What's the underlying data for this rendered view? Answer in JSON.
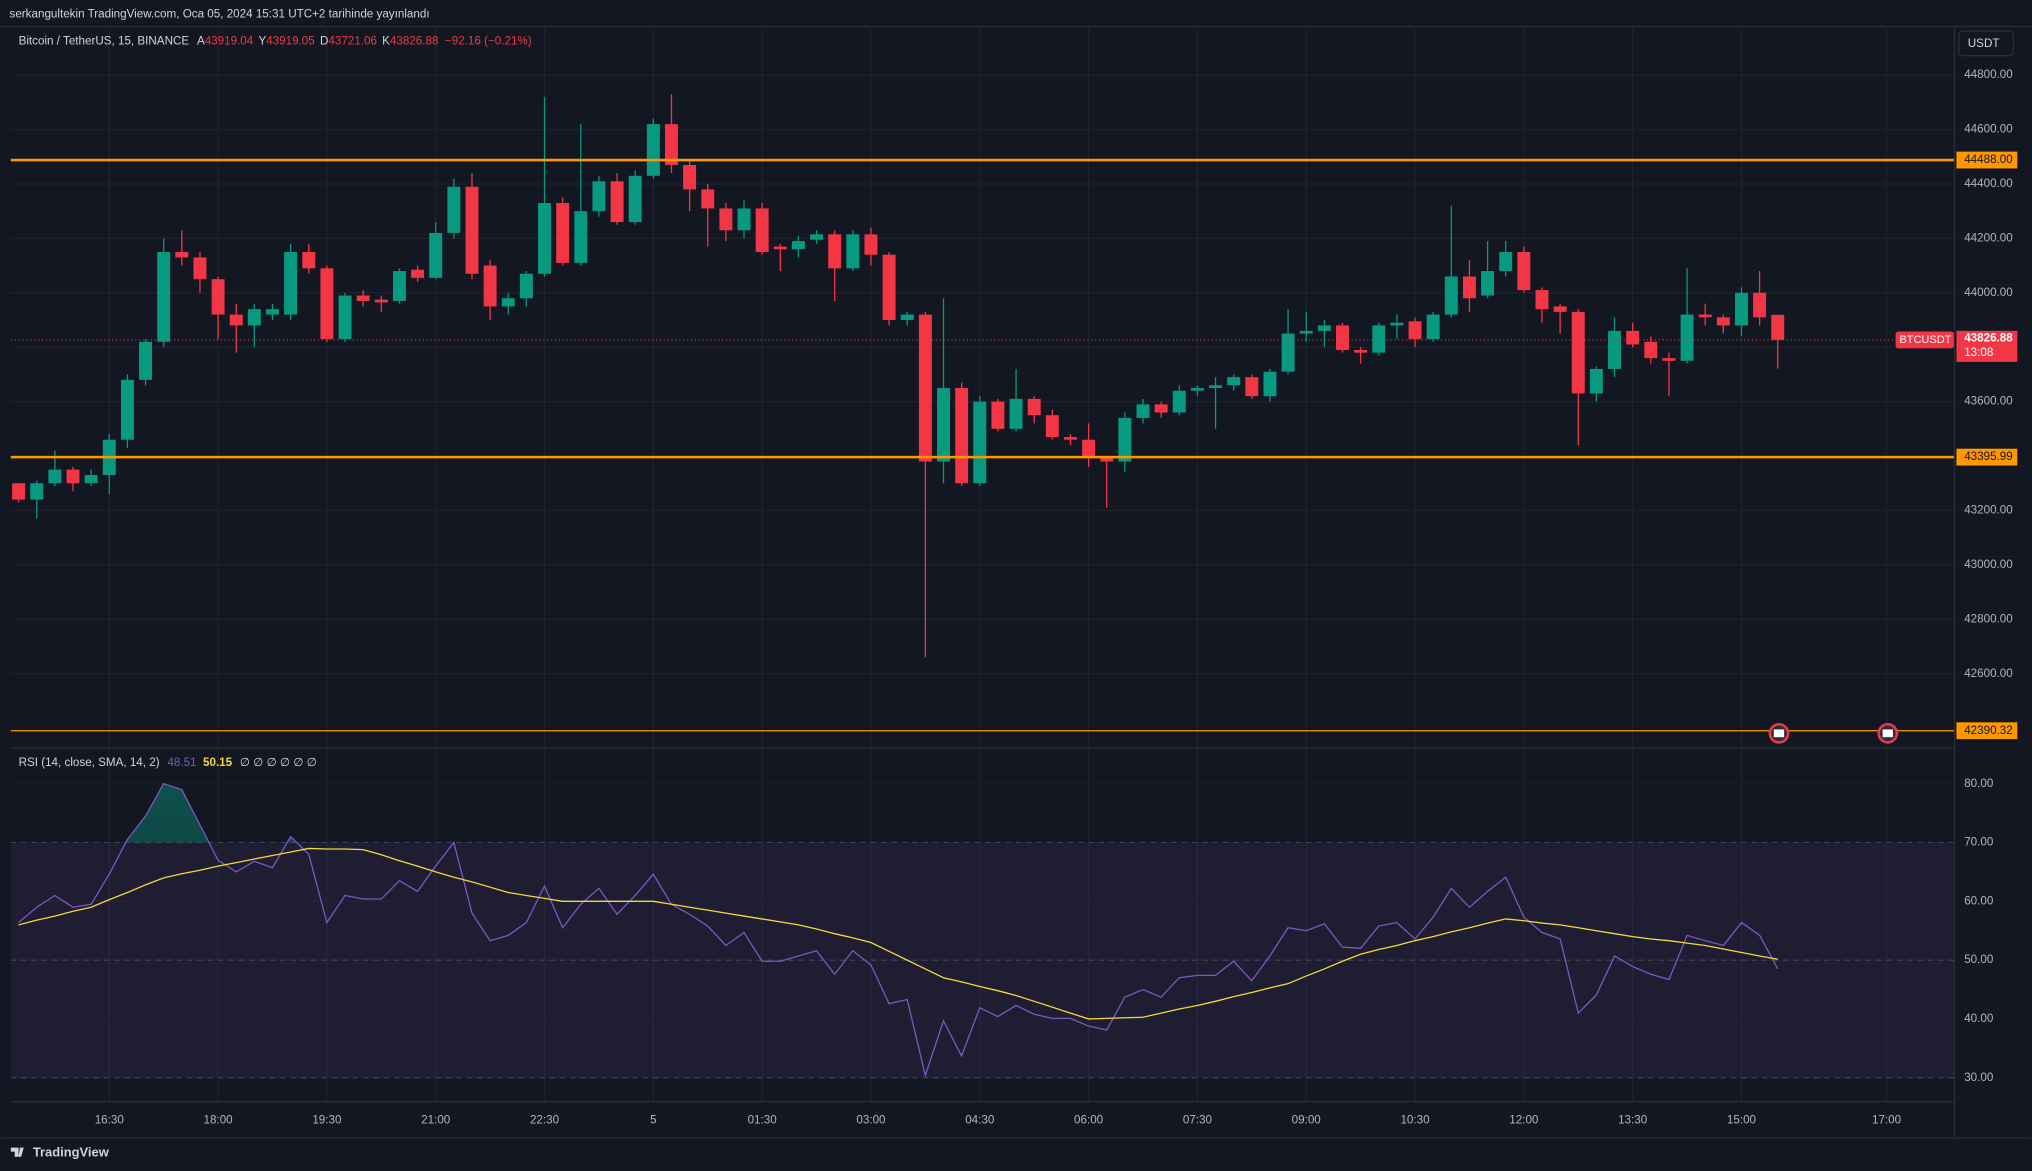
{
  "header": {
    "watermark": "serkangultekin TradingView.com, Oca 05, 2024 15:31 UTC+2 tarihinde yayınlandı",
    "symbol": "Bitcoin / TetherUS, 15, BINANCE",
    "open_label": "A",
    "open": "43919.04",
    "high_label": "Y",
    "high": "43919.05",
    "low_label": "D",
    "low": "43721.06",
    "close_label": "K",
    "close": "43826.88",
    "change": "−92.16 (−0.21%)",
    "currency": "USDT",
    "brand": "TradingView"
  },
  "chart_data": [
    {
      "type": "candlestick",
      "up_color": "#089981",
      "down_color": "#f23645",
      "grid": true,
      "ylim": [
        42329,
        44981
      ],
      "xlim": [
        -0.43,
        106.71
      ],
      "yticks": [
        {
          "value": 42600,
          "label": "42600.00"
        },
        {
          "value": 42800,
          "label": "42800.00"
        },
        {
          "value": 43000,
          "label": "43000.00"
        },
        {
          "value": 43200,
          "label": "43200.00"
        },
        {
          "value": 43400,
          "label": "43400.00"
        },
        {
          "value": 43600,
          "label": "43600.00"
        },
        {
          "value": 43800,
          "label": "43800.00"
        },
        {
          "value": 44000,
          "label": "44000.00"
        },
        {
          "value": 44200,
          "label": "44200.00"
        },
        {
          "value": 44400,
          "label": "44400.00"
        },
        {
          "value": 44600,
          "label": "44600.00"
        },
        {
          "value": 44800,
          "label": "44800.00"
        }
      ],
      "open": [
        43300,
        43240,
        43300,
        43350,
        43300,
        43330,
        43460,
        43680,
        43820,
        44150,
        44130,
        44050,
        43920,
        43880,
        43920,
        43920,
        44150,
        44090,
        43830,
        43990,
        43975,
        43970,
        44085,
        44055,
        44220,
        44390,
        44100,
        43950,
        43980,
        44070,
        44330,
        44110,
        44300,
        44410,
        44260,
        44430,
        44620,
        44470,
        44380,
        44310,
        44230,
        44310,
        44170,
        44160,
        44195,
        44215,
        44090,
        44215,
        44140,
        43900,
        43920,
        43380,
        43650,
        43300,
        43600,
        43500,
        43610,
        43550,
        43470,
        43460,
        43400,
        43380,
        43540,
        43590,
        43560,
        43640,
        43650,
        43660,
        43690,
        43620,
        43710,
        43850,
        43860,
        43880,
        43790,
        43780,
        43880,
        43895,
        43830,
        43920,
        44060,
        43990,
        44080,
        44150,
        44010,
        43950,
        43930,
        43630,
        43720,
        43860,
        43820,
        43760,
        43750,
        43920,
        43910,
        43880,
        44000,
        43919.04
      ],
      "high": [
        43300,
        43310,
        43420,
        43360,
        43350,
        43480,
        43700,
        43830,
        44200,
        44230,
        44150,
        44060,
        43960,
        43960,
        43960,
        44180,
        44180,
        44100,
        44000,
        44010,
        43990,
        44090,
        44100,
        44260,
        44420,
        44440,
        44120,
        44000,
        44080,
        44720,
        44350,
        44620,
        44430,
        44440,
        44450,
        44640,
        44730,
        44490,
        44400,
        44330,
        44340,
        44330,
        44180,
        44210,
        44230,
        44230,
        44230,
        44240,
        44150,
        43930,
        43930,
        43980,
        43670,
        43620,
        43610,
        43720,
        43620,
        43570,
        43480,
        43520,
        43400,
        43560,
        43610,
        43600,
        43660,
        43660,
        43690,
        43700,
        43700,
        43720,
        43940,
        43930,
        43900,
        43890,
        43800,
        43890,
        43920,
        43910,
        43930,
        44320,
        44120,
        44190,
        44190,
        44170,
        44020,
        43960,
        43940,
        43730,
        43910,
        43890,
        43840,
        43780,
        44090,
        43960,
        43920,
        44020,
        44080,
        43919.05
      ],
      "low": [
        43230,
        43170,
        43290,
        43270,
        43290,
        43260,
        43430,
        43660,
        43800,
        44100,
        44000,
        43830,
        43780,
        43800,
        43900,
        43900,
        44070,
        43820,
        43820,
        43950,
        43930,
        43960,
        44040,
        44050,
        44200,
        44050,
        43900,
        43920,
        43950,
        44060,
        44100,
        44100,
        44280,
        44250,
        44250,
        44420,
        44440,
        44300,
        44170,
        44190,
        44200,
        44140,
        44080,
        44130,
        44180,
        43970,
        44080,
        44100,
        43880,
        43880,
        42660,
        43300,
        43290,
        43290,
        43490,
        43490,
        43520,
        43460,
        43440,
        43360,
        43210,
        43340,
        43520,
        43540,
        43550,
        43620,
        43500,
        43640,
        43610,
        43600,
        43700,
        43820,
        43800,
        43780,
        43740,
        43770,
        43830,
        43800,
        43820,
        43910,
        43930,
        43980,
        44060,
        44000,
        43890,
        43850,
        43440,
        43600,
        43690,
        43800,
        43740,
        43620,
        43740,
        43880,
        43850,
        43840,
        43880,
        43721.06
      ],
      "close": [
        43240,
        43300,
        43350,
        43300,
        43330,
        43460,
        43680,
        43820,
        44150,
        44130,
        44050,
        43920,
        43880,
        43940,
        43940,
        44150,
        44090,
        43830,
        43990,
        43970,
        43965,
        44080,
        44055,
        44220,
        44390,
        44070,
        43950,
        43980,
        44070,
        44330,
        44110,
        44300,
        44410,
        44260,
        44430,
        44620,
        44470,
        44380,
        44310,
        44230,
        44310,
        44150,
        44160,
        44190,
        44215,
        44090,
        44215,
        44140,
        43900,
        43920,
        43380,
        43650,
        43300,
        43600,
        43500,
        43610,
        43550,
        43470,
        43460,
        43400,
        43380,
        43540,
        43590,
        43560,
        43640,
        43650,
        43660,
        43690,
        43620,
        43710,
        43850,
        43860,
        43880,
        43790,
        43780,
        43880,
        43890,
        43830,
        43920,
        44060,
        43980,
        44080,
        44150,
        44010,
        43940,
        43930,
        43630,
        43720,
        43860,
        43810,
        43760,
        43750,
        43920,
        43910,
        43880,
        44000,
        43910,
        43826.88
      ],
      "hlines": [
        {
          "value": 44488,
          "label": "44488.00",
          "color": "#ff9800",
          "width": 2
        },
        {
          "value": 43395.99,
          "label": "43395.99",
          "color": "#ff9800",
          "width": 2
        },
        {
          "value": 42390.32,
          "label": "42390.32",
          "color": "#ff9800",
          "width": 1
        }
      ],
      "last_price": {
        "name": "BTCUSDT",
        "value": 43826.88,
        "label": "43826.88",
        "countdown": "13:08",
        "color": "#f23645"
      }
    },
    {
      "type": "line",
      "title": "RSI (14, close, SMA, 14, 2)",
      "extra": "∅ ∅ ∅ ∅ ∅ ∅",
      "ylim": [
        26.04,
        85.95
      ],
      "xlim": [
        -0.43,
        106.71
      ],
      "yticks": [
        {
          "value": 30,
          "label": "30.00"
        },
        {
          "value": 40,
          "label": "40.00"
        },
        {
          "value": 50,
          "label": "50.00"
        },
        {
          "value": 60,
          "label": "60.00"
        },
        {
          "value": 70,
          "label": "70.00"
        },
        {
          "value": 80,
          "label": "80.00"
        }
      ],
      "xticks": [
        {
          "value": 5,
          "label": "16:30"
        },
        {
          "value": 11,
          "label": "18:00"
        },
        {
          "value": 17,
          "label": "19:30"
        },
        {
          "value": 23,
          "label": "21:00"
        },
        {
          "value": 29,
          "label": "22:30"
        },
        {
          "value": 35,
          "label": "5"
        },
        {
          "value": 41,
          "label": "01:30"
        },
        {
          "value": 47,
          "label": "03:00"
        },
        {
          "value": 53,
          "label": "04:30"
        },
        {
          "value": 59,
          "label": "06:00"
        },
        {
          "value": 65,
          "label": "07:30"
        },
        {
          "value": 71,
          "label": "09:00"
        },
        {
          "value": 77,
          "label": "10:30"
        },
        {
          "value": 83,
          "label": "12:00"
        },
        {
          "value": 89,
          "label": "13:30"
        },
        {
          "value": 95,
          "label": "15:00"
        },
        {
          "value": 103,
          "label": "17:00"
        }
      ],
      "band": {
        "lower": 30,
        "middle": 50,
        "upper": 70,
        "color": "#7e57c2"
      },
      "series": [
        {
          "color": "#7e57c2",
          "last_label": "48.51",
          "values": [
            56.4,
            59,
            61,
            59,
            59.5,
            64.6,
            70.5,
            74.5,
            80,
            79,
            73,
            67,
            65,
            66.8,
            65.7,
            71,
            68,
            56.4,
            61,
            60.4,
            60.4,
            63.5,
            61.7,
            66,
            70,
            58,
            53.3,
            54.2,
            56.4,
            62.6,
            55.5,
            59.5,
            62.2,
            57.8,
            61,
            64.6,
            59.5,
            57.8,
            55.8,
            52.5,
            54.7,
            49.8,
            49.8,
            50.7,
            51.6,
            47.6,
            51.6,
            49.2,
            42.6,
            43.3,
            30.4,
            39.7,
            33.7,
            41.9,
            40.4,
            42.3,
            40.8,
            40.1,
            40.1,
            38.8,
            38.1,
            43.7,
            45,
            43.7,
            47,
            47.4,
            47.4,
            49.8,
            46.5,
            50.7,
            55.5,
            55,
            56.2,
            52.2,
            52,
            55.8,
            56.4,
            53.6,
            57.3,
            62.2,
            59,
            61.7,
            64.1,
            57.3,
            54.7,
            53.6,
            41,
            44.1,
            50.7,
            48.9,
            47.6,
            46.7,
            54.2,
            53.3,
            52.5,
            56.4,
            54.2,
            48.51
          ]
        },
        {
          "color": "#f5d83b",
          "last_label": "50.15",
          "values": [
            56,
            56.8,
            57.5,
            58.3,
            59,
            60.3,
            61.5,
            62.8,
            64,
            64.7,
            65.3,
            66,
            66.6,
            67.2,
            67.8,
            68.4,
            69,
            68.9,
            68.9,
            68.8,
            67.9,
            66.9,
            66,
            65,
            64.1,
            63.3,
            62.4,
            61.5,
            61,
            60.5,
            60,
            60,
            60,
            60,
            60,
            60,
            59.5,
            59,
            58.5,
            58,
            57.5,
            57,
            56.5,
            56,
            55.3,
            54.5,
            53.8,
            53,
            51.5,
            50,
            48.5,
            47,
            46.3,
            45.5,
            44.8,
            44,
            43,
            42,
            41,
            40,
            40.1,
            40.2,
            40.3,
            41,
            41.7,
            42.3,
            43,
            43.8,
            44.5,
            45.3,
            46,
            47.3,
            48.5,
            49.8,
            51,
            51.8,
            52.5,
            53.3,
            54,
            54.8,
            55.5,
            56.3,
            57,
            56.7,
            56.3,
            56,
            55.5,
            55,
            54.5,
            54,
            53.6,
            53.3,
            52.9,
            52.5,
            51.9,
            51.3,
            50.7,
            50.15
          ]
        }
      ]
    }
  ]
}
